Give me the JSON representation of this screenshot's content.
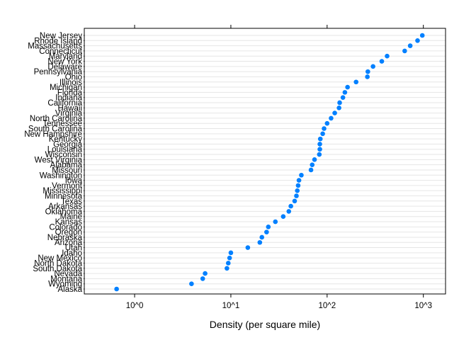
{
  "chart_data": {
    "type": "scatter",
    "xlabel": "Density (per square mile)",
    "ylabel": "",
    "x_scale": "log10",
    "xlim": [
      0.3,
      1700
    ],
    "x_ticks": [
      1,
      10,
      100,
      1000
    ],
    "x_tick_labels": [
      "10^0",
      "10^1",
      "10^2",
      "10^3"
    ],
    "grid": true,
    "legend": "none",
    "point_color": "#0080ff",
    "grid_color": "#e6e6e6",
    "points": [
      {
        "state": "New Jersey",
        "density": 975
      },
      {
        "state": "Rhode Island",
        "density": 870
      },
      {
        "state": "Massachusetts",
        "density": 730
      },
      {
        "state": "Connecticut",
        "density": 640
      },
      {
        "state": "Maryland",
        "density": 420
      },
      {
        "state": "New York",
        "density": 370
      },
      {
        "state": "Delaware",
        "density": 300
      },
      {
        "state": "Pennsylvania",
        "density": 265
      },
      {
        "state": "Ohio",
        "density": 262
      },
      {
        "state": "Illinois",
        "density": 200
      },
      {
        "state": "Michigan",
        "density": 163
      },
      {
        "state": "Florida",
        "density": 153
      },
      {
        "state": "Indiana",
        "density": 146
      },
      {
        "state": "California",
        "density": 135
      },
      {
        "state": "Hawaii",
        "density": 133
      },
      {
        "state": "Virginia",
        "density": 120
      },
      {
        "state": "North Carolina",
        "density": 110
      },
      {
        "state": "Tennessee",
        "density": 100
      },
      {
        "state": "South Carolina",
        "density": 93
      },
      {
        "state": "New Hampshire",
        "density": 90
      },
      {
        "state": "Kentucky",
        "density": 85
      },
      {
        "state": "Georgia",
        "density": 84
      },
      {
        "state": "Louisiana",
        "density": 84
      },
      {
        "state": "Wisconsin",
        "density": 83
      },
      {
        "state": "West Virginia",
        "density": 74
      },
      {
        "state": "Alabama",
        "density": 70
      },
      {
        "state": "Missouri",
        "density": 68
      },
      {
        "state": "Washington",
        "density": 54
      },
      {
        "state": "Iowa",
        "density": 51
      },
      {
        "state": "Vermont",
        "density": 50
      },
      {
        "state": "Mississippi",
        "density": 49
      },
      {
        "state": "Minnesota",
        "density": 48
      },
      {
        "state": "Texas",
        "density": 46
      },
      {
        "state": "Arkansas",
        "density": 42
      },
      {
        "state": "Oklahoma",
        "density": 40
      },
      {
        "state": "Maine",
        "density": 35
      },
      {
        "state": "Kansas",
        "density": 29
      },
      {
        "state": "Colorado",
        "density": 24.5
      },
      {
        "state": "Oregon",
        "density": 23.5
      },
      {
        "state": "Nebraska",
        "density": 21
      },
      {
        "state": "Arizona",
        "density": 20
      },
      {
        "state": "Utah",
        "density": 15
      },
      {
        "state": "Idaho",
        "density": 10
      },
      {
        "state": "New Mexico",
        "density": 9.7
      },
      {
        "state": "North Dakota",
        "density": 9.4
      },
      {
        "state": "South Dakota",
        "density": 9.1
      },
      {
        "state": "Nevada",
        "density": 5.4
      },
      {
        "state": "Montana",
        "density": 5.1
      },
      {
        "state": "Wyoming",
        "density": 3.9
      },
      {
        "state": "Alaska",
        "density": 0.65
      }
    ]
  }
}
